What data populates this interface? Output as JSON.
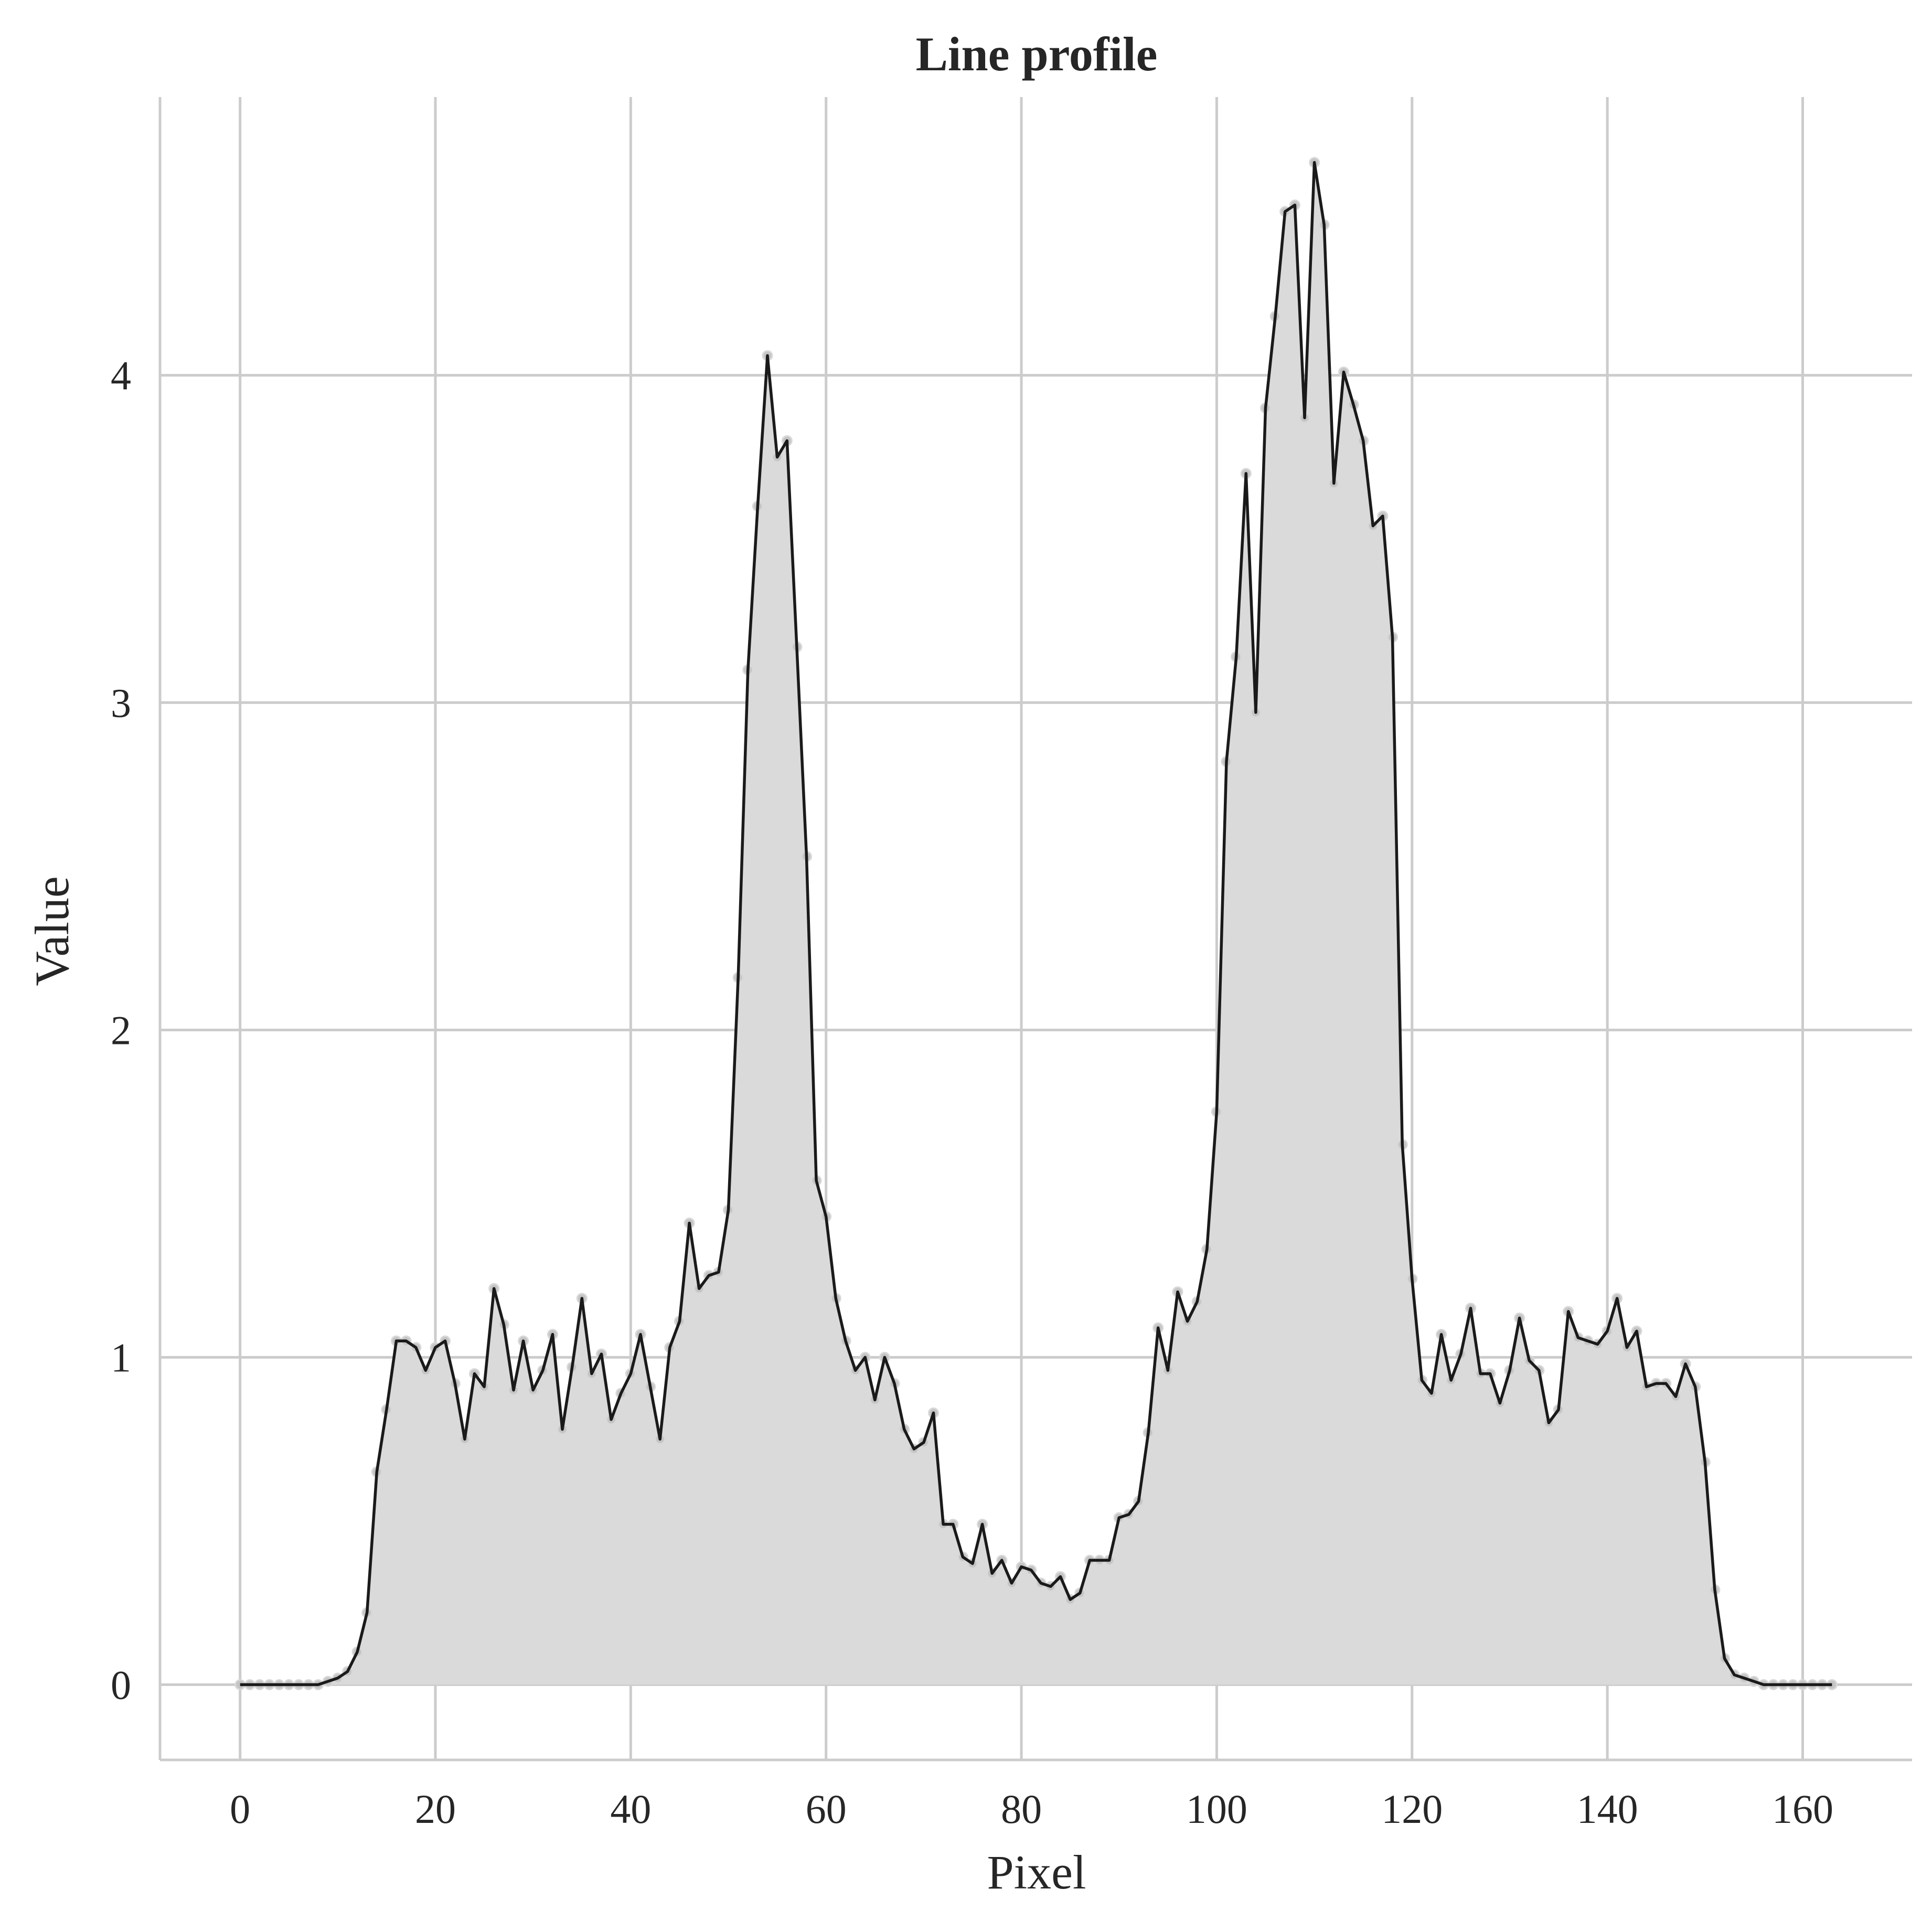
{
  "chart_data": {
    "type": "line",
    "title": "Line profile",
    "xlabel": "Pixel",
    "ylabel": "Value",
    "xlim": [
      -8.2,
      171.2
    ],
    "ylim": [
      -0.23,
      4.85
    ],
    "xticks": [
      0,
      20,
      40,
      60,
      80,
      100,
      120,
      140,
      160
    ],
    "yticks": [
      0,
      1,
      2,
      3,
      4
    ],
    "grid": true,
    "fill_under_line": true,
    "legend": "none",
    "colors": {
      "line": "#1a1a1a",
      "fill": "#dadada",
      "markers": "#c4c4c4",
      "grid": "#cccccc",
      "text": "#262626"
    },
    "series": [
      {
        "x": [
          0,
          1,
          2,
          3,
          4,
          5,
          6,
          7,
          8,
          9,
          10,
          11,
          12,
          13,
          14,
          15,
          16,
          17,
          18,
          19,
          20,
          21,
          22,
          23,
          24,
          25,
          26,
          27,
          28,
          29,
          30,
          31,
          32,
          33,
          34,
          35,
          36,
          37,
          38,
          39,
          40,
          41,
          42,
          43,
          44,
          45,
          46,
          47,
          48,
          49,
          50,
          51,
          52,
          53,
          54,
          55,
          56,
          57,
          58,
          59,
          60,
          61,
          62,
          63,
          64,
          65,
          66,
          67,
          68,
          69,
          70,
          71,
          72,
          73,
          74,
          75,
          76,
          77,
          78,
          79,
          80,
          81,
          82,
          83,
          84,
          85,
          86,
          87,
          88,
          89,
          90,
          91,
          92,
          93,
          94,
          95,
          96,
          97,
          98,
          99,
          100,
          101,
          102,
          103,
          104,
          105,
          106,
          107,
          108,
          109,
          110,
          111,
          112,
          113,
          114,
          115,
          116,
          117,
          118,
          119,
          120,
          121,
          122,
          123,
          124,
          125,
          126,
          127,
          128,
          129,
          130,
          131,
          132,
          133,
          134,
          135,
          136,
          137,
          138,
          139,
          140,
          141,
          142,
          143,
          144,
          145,
          146,
          147,
          148,
          149,
          150,
          151,
          152,
          153,
          154,
          155,
          156,
          157,
          158,
          159,
          160,
          161,
          162,
          163
        ],
        "y": [
          0.0,
          0.0,
          0.0,
          0.0,
          0.0,
          0.0,
          0.0,
          0.0,
          0.0,
          0.01,
          0.02,
          0.04,
          0.1,
          0.22,
          0.65,
          0.84,
          1.05,
          1.05,
          1.03,
          0.96,
          1.03,
          1.05,
          0.92,
          0.75,
          0.95,
          0.91,
          1.21,
          1.1,
          0.9,
          1.05,
          0.9,
          0.96,
          1.07,
          0.78,
          0.97,
          1.18,
          0.95,
          1.01,
          0.81,
          0.89,
          0.95,
          1.07,
          0.91,
          0.75,
          1.03,
          1.11,
          1.41,
          1.21,
          1.25,
          1.26,
          1.45,
          2.16,
          3.1,
          3.6,
          4.06,
          3.75,
          3.8,
          3.17,
          2.53,
          1.54,
          1.43,
          1.18,
          1.05,
          0.96,
          1.0,
          0.87,
          1.0,
          0.92,
          0.78,
          0.72,
          0.74,
          0.83,
          0.49,
          0.49,
          0.39,
          0.37,
          0.49,
          0.34,
          0.38,
          0.31,
          0.36,
          0.35,
          0.31,
          0.3,
          0.33,
          0.26,
          0.28,
          0.38,
          0.38,
          0.38,
          0.51,
          0.52,
          0.56,
          0.77,
          1.09,
          0.96,
          1.2,
          1.11,
          1.17,
          1.33,
          1.75,
          2.82,
          3.14,
          3.7,
          2.97,
          3.9,
          4.18,
          4.5,
          4.52,
          3.87,
          4.65,
          4.46,
          3.67,
          4.01,
          3.91,
          3.8,
          3.54,
          3.57,
          3.2,
          1.65,
          1.24,
          0.93,
          0.89,
          1.07,
          0.93,
          1.01,
          1.15,
          0.95,
          0.95,
          0.86,
          0.96,
          1.12,
          0.99,
          0.96,
          0.8,
          0.84,
          1.14,
          1.06,
          1.05,
          1.04,
          1.08,
          1.18,
          1.03,
          1.08,
          0.91,
          0.92,
          0.92,
          0.88,
          0.98,
          0.91,
          0.68,
          0.29,
          0.08,
          0.03,
          0.02,
          0.01,
          0.0,
          0.0,
          0.0,
          0.0,
          0.0,
          0.0,
          0.0,
          0.0
        ]
      }
    ]
  }
}
